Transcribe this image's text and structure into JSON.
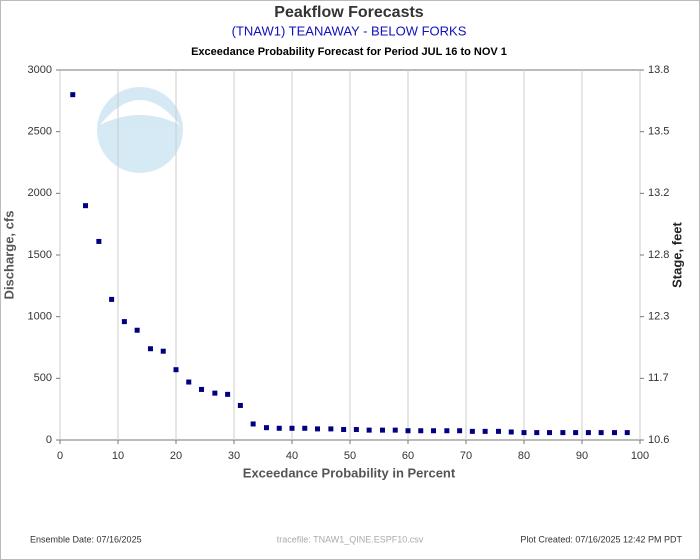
{
  "chart_data": {
    "type": "scatter",
    "title": "Peakflow Forecasts",
    "subtitle": "(TNAW1) TEANAWAY - BELOW FORKS",
    "period": "Exceedance Probability Forecast for Period JUL 16 to NOV 1",
    "x_label": "Exceedance Probability in Percent",
    "y_label": "Discharge, cfs",
    "y2_label": "Stage, feet",
    "footer_left": "Ensemble Date: 07/16/2025",
    "footer_center": "tracefile: TNAW1_QINE.ESPF10.csv",
    "footer_right": "Plot Created: 07/16/2025 12:42 PM PDT",
    "color": "#000080",
    "grid": "x",
    "xlim": [
      0,
      100
    ],
    "xticks": [
      0,
      10,
      20,
      30,
      40,
      50,
      60,
      70,
      80,
      90,
      100
    ],
    "ylim": [
      0,
      3000
    ],
    "yticks": [
      0,
      500,
      1000,
      1500,
      2000,
      2500,
      3000
    ],
    "y2lim": [
      10.6,
      13.8
    ],
    "y2ticks": [
      10.6,
      11.7,
      12.3,
      12.8,
      13.2,
      13.5,
      13.8
    ],
    "x": [
      2.2,
      4.4,
      6.7,
      8.9,
      11.1,
      13.3,
      15.6,
      17.8,
      20,
      22.2,
      24.4,
      26.7,
      28.9,
      31.1,
      33.3,
      35.6,
      37.8,
      40,
      42.2,
      44.4,
      46.7,
      48.9,
      51.1,
      53.3,
      55.6,
      57.8,
      60,
      62.2,
      64.4,
      66.7,
      68.9,
      71.1,
      73.3,
      75.6,
      77.8,
      80,
      82.2,
      84.4,
      86.7,
      88.9,
      91.1,
      93.3,
      95.6,
      97.8
    ],
    "values": [
      2800,
      1900,
      1610,
      1140,
      960,
      890,
      740,
      720,
      570,
      470,
      410,
      380,
      370,
      280,
      130,
      100,
      95,
      95,
      95,
      90,
      90,
      85,
      85,
      80,
      80,
      80,
      75,
      75,
      75,
      75,
      75,
      70,
      70,
      70,
      65,
      60,
      60,
      60,
      60,
      60,
      60,
      60,
      60,
      60
    ]
  }
}
